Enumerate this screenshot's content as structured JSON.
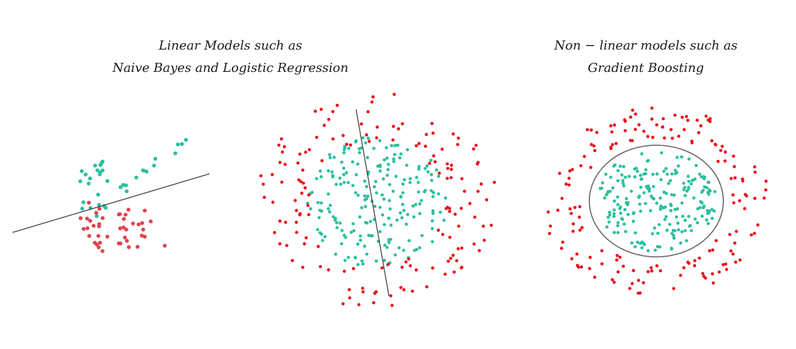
{
  "captions": {
    "left": {
      "line1": "Linear Models such as",
      "line2": "Naive Bayes and Logistic Regression"
    },
    "right": {
      "line1": "Non − linear models such as",
      "line2": "Gradient Boosting"
    }
  },
  "colors": {
    "class_a": "#2bbf9f",
    "class_b": "#e0434c",
    "class_b_panel3": "#e8141c",
    "boundary": "#444444"
  },
  "panels": [
    {
      "name": "linear-separable-scatter",
      "boundary": "straight-line",
      "well_separated": true
    },
    {
      "name": "linear-nonseparable-scatter",
      "boundary": "straight-line",
      "well_separated": false
    },
    {
      "name": "nonlinear-scatter",
      "boundary": "ellipse",
      "well_separated": true
    }
  ]
}
